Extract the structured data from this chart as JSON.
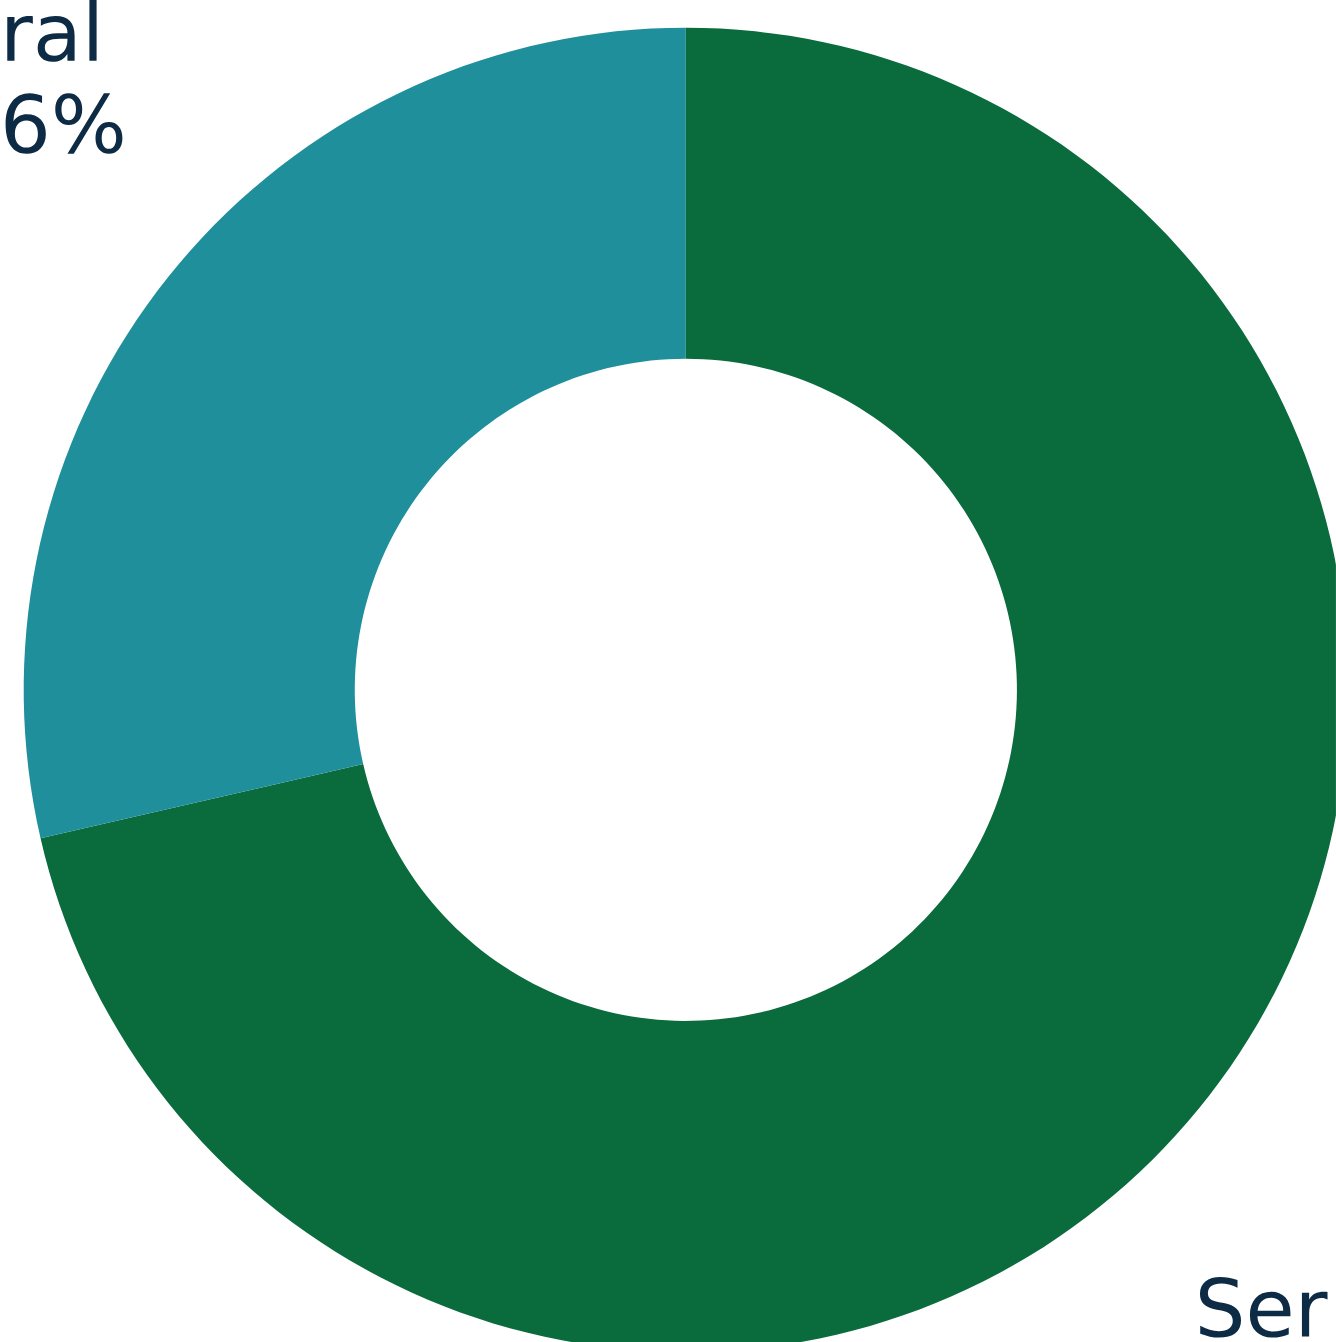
{
  "chart_data": {
    "type": "donut",
    "categories": [
      "Ser",
      "ral"
    ],
    "values": [
      71.4,
      28.6
    ],
    "colors": [
      "#0a6b3c",
      "#1f8f9c"
    ],
    "annotations": [
      "6%"
    ]
  }
}
